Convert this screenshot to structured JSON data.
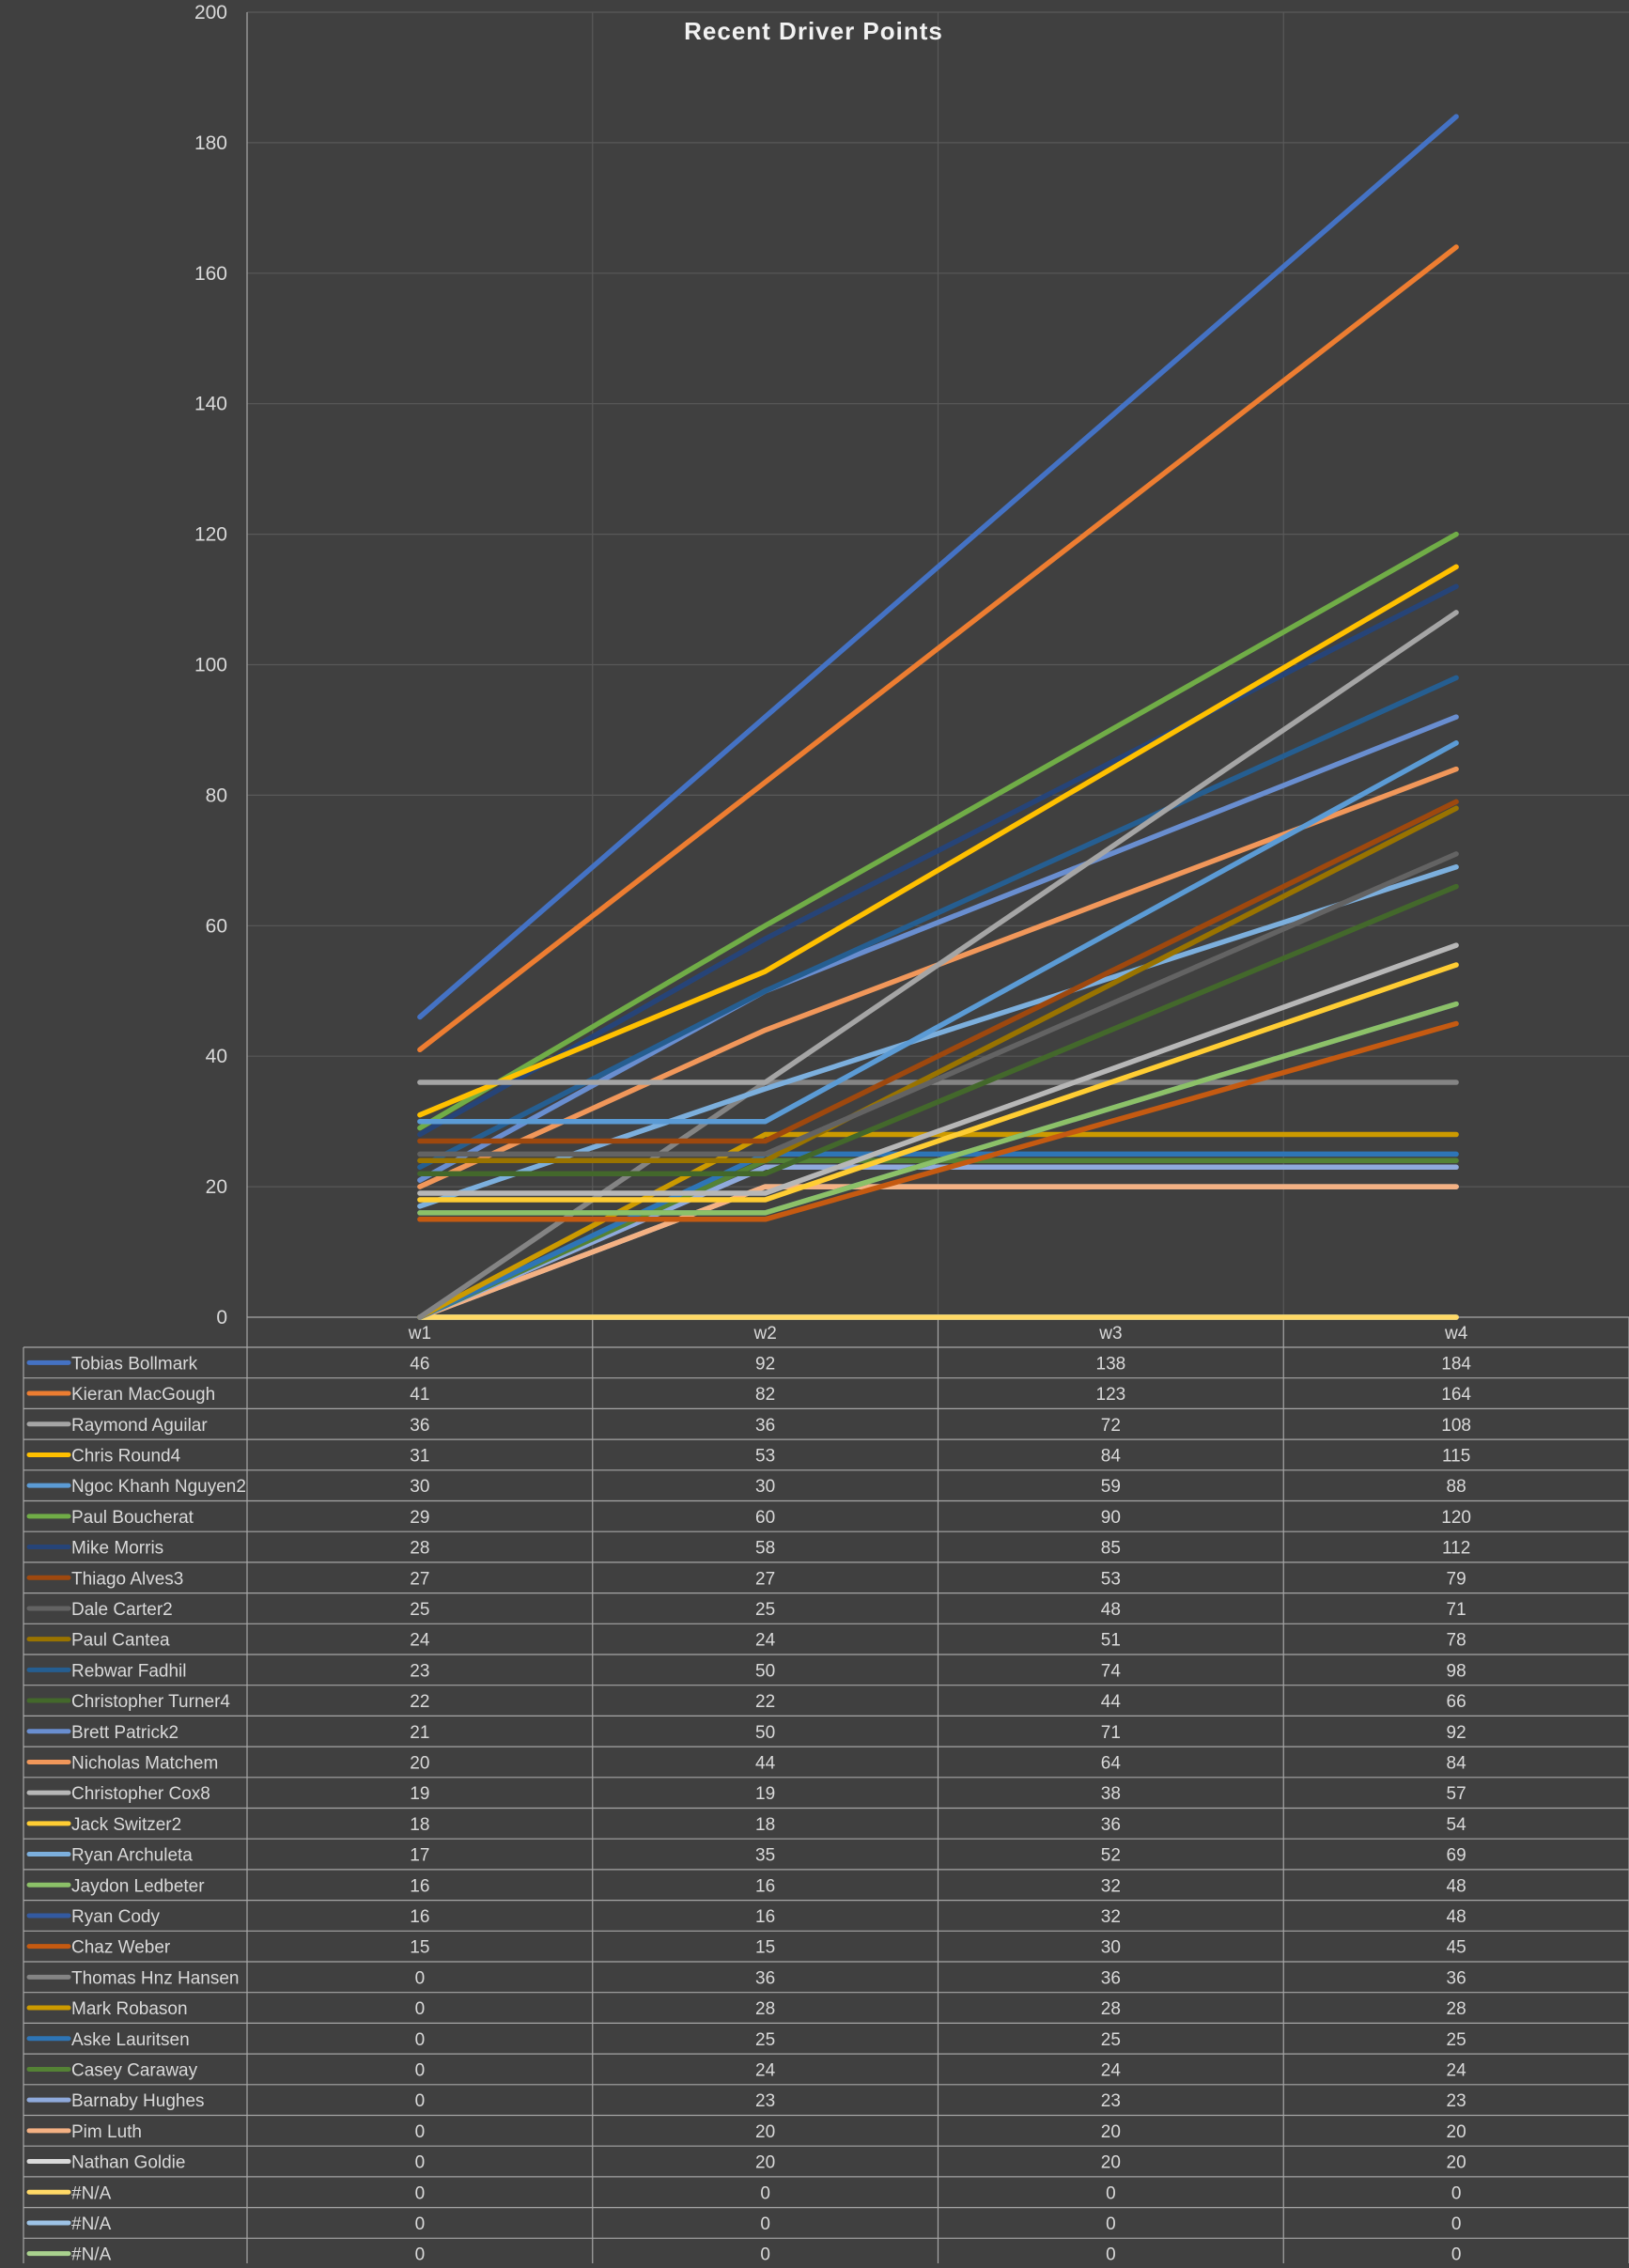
{
  "chart_data": {
    "type": "line",
    "title": "Recent Driver Points",
    "xlabel": "",
    "ylabel": "",
    "ylim": [
      0,
      200
    ],
    "y_ticks": [
      0,
      20,
      40,
      60,
      80,
      100,
      120,
      140,
      160,
      180,
      200
    ],
    "grid": true,
    "legend": "data-table",
    "categories": [
      "w1",
      "w2",
      "w3",
      "w4"
    ],
    "series": [
      {
        "name": "Tobias Bollmark",
        "color": "#4472c4",
        "values": [
          46,
          92,
          138,
          184
        ]
      },
      {
        "name": "Kieran MacGough",
        "color": "#ed7d31",
        "values": [
          41,
          82,
          123,
          164
        ]
      },
      {
        "name": "Raymond Aguilar",
        "color": "#a5a5a5",
        "values": [
          36,
          36,
          72,
          108
        ]
      },
      {
        "name": "Chris Round4",
        "color": "#ffc000",
        "values": [
          31,
          53,
          84,
          115
        ]
      },
      {
        "name": "Ngoc Khanh Nguyen2",
        "color": "#5b9bd5",
        "values": [
          30,
          30,
          59,
          88
        ]
      },
      {
        "name": "Paul Boucherat",
        "color": "#70ad47",
        "values": [
          29,
          60,
          90,
          120
        ]
      },
      {
        "name": "Mike Morris",
        "color": "#264478",
        "values": [
          28,
          58,
          85,
          112
        ]
      },
      {
        "name": "Thiago Alves3",
        "color": "#9e480e",
        "values": [
          27,
          27,
          53,
          79
        ]
      },
      {
        "name": "Dale Carter2",
        "color": "#636363",
        "values": [
          25,
          25,
          48,
          71
        ]
      },
      {
        "name": "Paul Cantea",
        "color": "#997300",
        "values": [
          24,
          24,
          51,
          78
        ]
      },
      {
        "name": "Rebwar Fadhil",
        "color": "#255e91",
        "values": [
          23,
          50,
          74,
          98
        ]
      },
      {
        "name": "Christopher Turner4",
        "color": "#43682b",
        "values": [
          22,
          22,
          44,
          66
        ]
      },
      {
        "name": "Brett Patrick2",
        "color": "#698ed0",
        "values": [
          21,
          50,
          71,
          92
        ]
      },
      {
        "name": "Nicholas Matchem",
        "color": "#f1975a",
        "values": [
          20,
          44,
          64,
          84
        ]
      },
      {
        "name": "Christopher Cox8",
        "color": "#b7b7b7",
        "values": [
          19,
          19,
          38,
          57
        ]
      },
      {
        "name": "Jack Switzer2",
        "color": "#ffcd33",
        "values": [
          18,
          18,
          36,
          54
        ]
      },
      {
        "name": "Ryan Archuleta",
        "color": "#7cafdd",
        "values": [
          17,
          35,
          52,
          69
        ]
      },
      {
        "name": "Jaydon Ledbeter",
        "color": "#8cc168",
        "values": [
          16,
          16,
          32,
          48
        ]
      },
      {
        "name": "Ryan Cody",
        "color": "#335aa1",
        "values": [
          16,
          16,
          32,
          48
        ]
      },
      {
        "name": "Chaz Weber",
        "color": "#c55a11",
        "values": [
          15,
          15,
          30,
          45
        ]
      },
      {
        "name": "Thomas Hnz Hansen",
        "color": "#848484",
        "values": [
          0,
          36,
          36,
          36
        ]
      },
      {
        "name": "Mark Robason",
        "color": "#cc9a00",
        "values": [
          0,
          28,
          28,
          28
        ]
      },
      {
        "name": "Aske Lauritsen",
        "color": "#2e75b6",
        "values": [
          0,
          25,
          25,
          25
        ]
      },
      {
        "name": "Casey Caraway",
        "color": "#548235",
        "values": [
          0,
          24,
          24,
          24
        ]
      },
      {
        "name": "Barnaby Hughes",
        "color": "#8faadc",
        "values": [
          0,
          23,
          23,
          23
        ]
      },
      {
        "name": "Pim Luth",
        "color": "#f4b183",
        "values": [
          0,
          20,
          20,
          20
        ]
      },
      {
        "name": "Nathan Goldie",
        "color": "#d9d9d9",
        "values": [
          0,
          20,
          20,
          20
        ]
      },
      {
        "name": "#N/A",
        "color": "#ffd966",
        "values": [
          0,
          0,
          0,
          0
        ]
      },
      {
        "name": "#N/A",
        "color": "#9dc3e6",
        "values": [
          0,
          0,
          0,
          0
        ]
      },
      {
        "name": "#N/A",
        "color": "#a9d18e",
        "values": [
          0,
          0,
          0,
          0
        ]
      }
    ]
  },
  "colors": {
    "background": "#404040",
    "gridline": "#595959",
    "table_border": "#a6a6a6",
    "text": "#d9d9d9",
    "title": "#f2f2f2"
  }
}
